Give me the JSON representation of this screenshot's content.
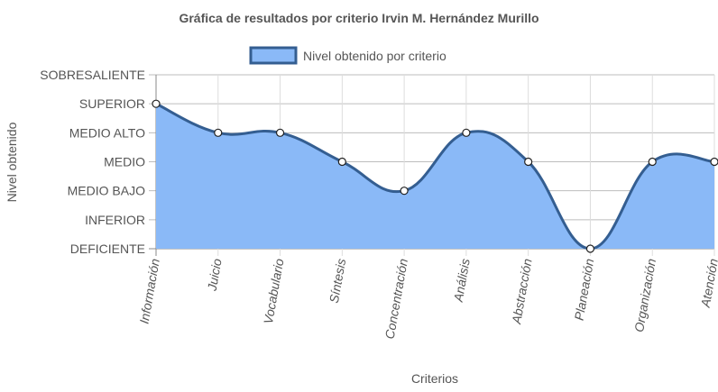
{
  "chart_data": {
    "type": "area",
    "title": "Gráfica de resultados por criterio Irvin M. Hernández Murillo",
    "xlabel": "Criterios",
    "ylabel": "Nivel obtenido",
    "categories": [
      "Información",
      "Juicio",
      "Vocabulario",
      "Síntesis",
      "Concentración",
      "Análisis",
      "Abstracción",
      "Planeación",
      "Organización",
      "Atención"
    ],
    "y_levels": [
      "DEFICIENTE",
      "INFERIOR",
      "MEDIO BAJO",
      "MEDIO",
      "MEDIO ALTO",
      "SUPERIOR",
      "SOBRESALIENTE"
    ],
    "ylim": [
      0,
      6
    ],
    "grid": true,
    "legend_position": "top",
    "series": [
      {
        "name": "Nivel obtenido por criterio",
        "values": [
          5,
          4,
          4,
          3,
          2,
          4,
          3,
          0,
          3,
          3
        ],
        "fill_color": "#8ab9f7",
        "line_color": "#345e91"
      }
    ]
  }
}
